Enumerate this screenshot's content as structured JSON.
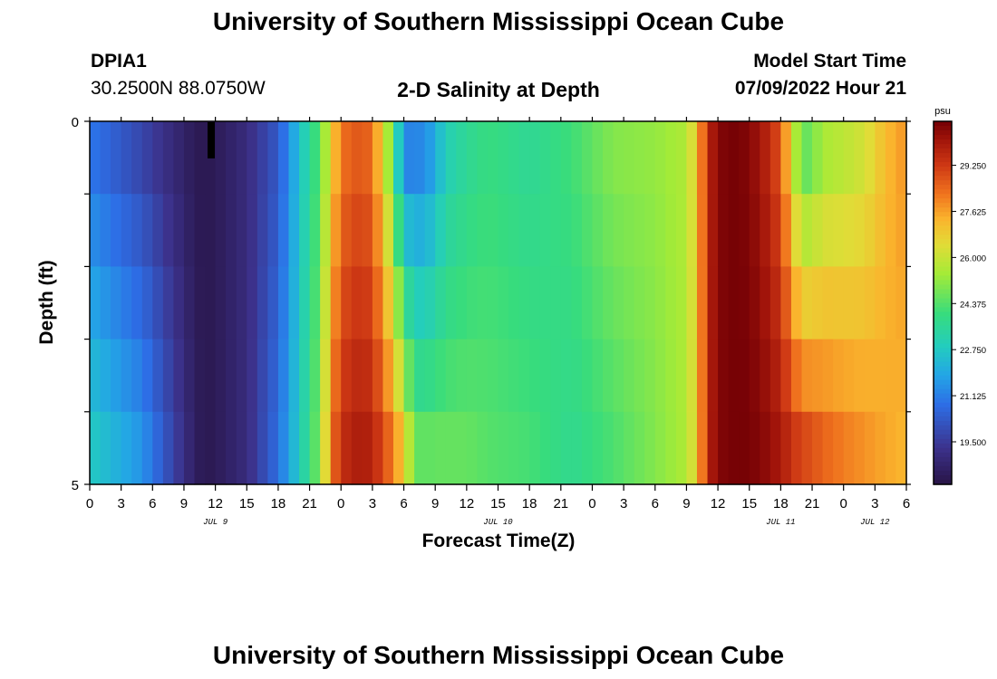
{
  "page": {
    "title": "University of Southern Mississippi Ocean Cube",
    "title_repeat": "University of Southern Mississippi Ocean Cube",
    "station_id": "DPIA1",
    "coordinates": "30.2500N  88.0750W",
    "chart_title": "2-D Salinity at Depth",
    "model_start_label": "Model Start Time",
    "model_start_value": "07/09/2022 Hour 21"
  },
  "chart_data": {
    "type": "heatmap",
    "title": "2-D Salinity at Depth",
    "xlabel": "Forecast Time(Z)",
    "ylabel": "Depth (ft)",
    "ylim": [
      0,
      5
    ],
    "y_tick_labels": [
      "0",
      "5"
    ],
    "x_tick_labels": [
      "0",
      "3",
      "6",
      "9",
      "12",
      "15",
      "18",
      "21",
      "0",
      "3",
      "6",
      "9",
      "12",
      "15",
      "18",
      "21",
      "0",
      "3",
      "6",
      "9",
      "12",
      "15",
      "18",
      "21",
      "0",
      "3",
      "6"
    ],
    "date_labels": [
      "JUL 9",
      "JUL 10",
      "JUL 11",
      "JUL 12"
    ],
    "time_start_hour": 0,
    "time_end_hour": 78,
    "depth_layers": 5,
    "colorbar": {
      "unit": "psu",
      "min": 18.0,
      "max": 30.8,
      "ticks": [
        "29.250",
        "27.625",
        "26.000",
        "24.375",
        "22.750",
        "21.125",
        "19.500"
      ],
      "tick_values": [
        29.25,
        27.625,
        26.0,
        24.375,
        22.75,
        21.125,
        19.5
      ]
    },
    "profile_times": [
      0,
      5,
      10,
      11,
      12,
      15,
      18,
      20,
      22,
      23,
      24,
      26,
      27,
      28,
      29,
      30,
      31,
      32,
      33,
      34,
      36,
      38,
      42,
      46,
      50,
      54,
      57,
      58,
      59,
      60,
      62,
      64,
      66,
      67,
      68,
      69,
      70,
      72,
      74,
      76,
      78
    ],
    "salinity_surface_psu": [
      21.0,
      19.8,
      18.3,
      18.2,
      18.3,
      19.0,
      20.3,
      22.5,
      24.5,
      26.5,
      28.3,
      28.8,
      28.3,
      26.6,
      24.3,
      21.3,
      21.2,
      21.4,
      22.0,
      23.0,
      23.6,
      24.0,
      23.6,
      24.1,
      25.0,
      25.2,
      25.6,
      27.0,
      29.5,
      30.6,
      30.8,
      30.2,
      28.8,
      26.5,
      24.5,
      24.8,
      25.5,
      25.8,
      26.2,
      27.2,
      27.8
    ],
    "salinity_bottom_psu": [
      22.8,
      21.5,
      18.5,
      18.2,
      18.3,
      19.0,
      20.8,
      22.8,
      25.0,
      28.0,
      29.5,
      30.0,
      29.7,
      29.0,
      28.0,
      26.8,
      24.6,
      24.5,
      24.6,
      24.6,
      24.6,
      24.4,
      24.2,
      23.7,
      24.3,
      25.0,
      25.6,
      26.8,
      29.6,
      30.6,
      30.8,
      30.6,
      30.0,
      29.4,
      29.0,
      28.8,
      28.5,
      28.1,
      27.8,
      27.5,
      27.3
    ]
  }
}
